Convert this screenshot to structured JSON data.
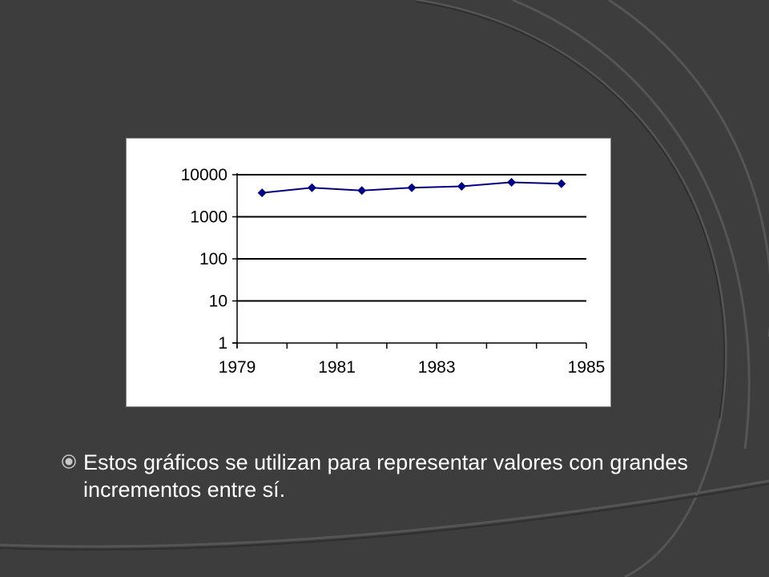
{
  "slide": {
    "background": "#3d3d3d",
    "bullet_text": "Estos gráficos se utilizan para representar valores con grandes incrementos entre sí.",
    "bullet_icon": "radio-bullet-icon"
  },
  "chart_data": {
    "type": "line",
    "title": "",
    "xlabel": "",
    "ylabel": "",
    "yscale": "log",
    "ylim": [
      1,
      10000
    ],
    "y_tick_labels": [
      "10000",
      "1000",
      "100",
      "10",
      "1"
    ],
    "y_ticks": [
      10000,
      1000,
      100,
      10,
      1
    ],
    "x_tick_labels": [
      "1979",
      "1981",
      "1983",
      "1985"
    ],
    "x": [
      "1979",
      "1980",
      "1981",
      "1982",
      "1983",
      "1984",
      "1985"
    ],
    "series": [
      {
        "values": [
          3700,
          4900,
          4200,
          4900,
          5300,
          6600,
          6100
        ],
        "color": "#000080",
        "marker": "diamond"
      }
    ],
    "grid": true,
    "legend": "none"
  }
}
